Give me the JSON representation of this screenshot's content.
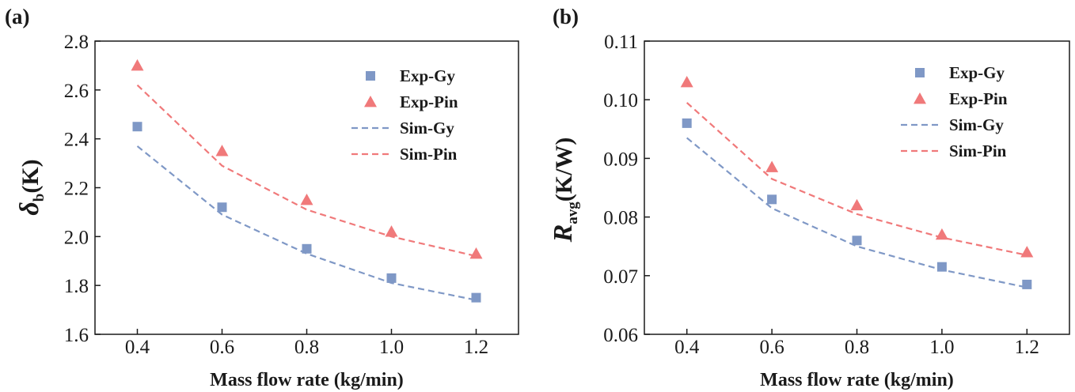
{
  "colors": {
    "gy": "#7f98c6",
    "pin": "#f0797a",
    "axis": "#1a1a1a"
  },
  "chart_data": [
    {
      "type": "scatter",
      "panel_label": "(a)",
      "ylabel_symbol": "δ",
      "ylabel_sub": "b",
      "ylabel_unit": "(K)",
      "xlabel": "Mass flow rate (kg/min)",
      "xlim": [
        0.3,
        1.3
      ],
      "ylim": [
        1.6,
        2.8
      ],
      "xticks": [
        0.4,
        0.6,
        0.8,
        1.0,
        1.2
      ],
      "xtick_labels": [
        "0.4",
        "0.6",
        "0.8",
        "1.0",
        "1.2"
      ],
      "yticks": [
        1.6,
        1.8,
        2.0,
        2.2,
        2.4,
        2.6,
        2.8
      ],
      "ytick_labels": [
        "1.6",
        "1.8",
        "2.0",
        "2.2",
        "2.4",
        "2.6",
        "2.8"
      ],
      "legend_position": "top-right",
      "x": [
        0.4,
        0.6,
        0.8,
        1.0,
        1.2
      ],
      "series": [
        {
          "name": "Exp-Gy",
          "kind": "square",
          "color": "#7f98c6",
          "values": [
            2.45,
            2.12,
            1.95,
            1.83,
            1.75
          ]
        },
        {
          "name": "Exp-Pin",
          "kind": "triangle",
          "color": "#f0797a",
          "values": [
            2.7,
            2.35,
            2.15,
            2.02,
            1.93
          ]
        },
        {
          "name": "Sim-Gy",
          "kind": "dashed",
          "color": "#7f98c6",
          "values": [
            2.37,
            2.09,
            1.93,
            1.81,
            1.74
          ]
        },
        {
          "name": "Sim-Pin",
          "kind": "dashed",
          "color": "#f0797a",
          "values": [
            2.62,
            2.29,
            2.11,
            2.0,
            1.92
          ]
        }
      ]
    },
    {
      "type": "scatter",
      "panel_label": "(b)",
      "ylabel_symbol": "R",
      "ylabel_sub": "avg",
      "ylabel_unit": "(K/W)",
      "xlabel": "Mass flow rate (kg/min)",
      "xlim": [
        0.3,
        1.3
      ],
      "ylim": [
        0.06,
        0.11
      ],
      "xticks": [
        0.4,
        0.6,
        0.8,
        1.0,
        1.2
      ],
      "xtick_labels": [
        "0.4",
        "0.6",
        "0.8",
        "1.0",
        "1.2"
      ],
      "yticks": [
        0.06,
        0.07,
        0.08,
        0.09,
        0.1,
        0.11
      ],
      "ytick_labels": [
        "0.06",
        "0.07",
        "0.08",
        "0.09",
        "0.10",
        "0.11"
      ],
      "legend_position": "top-right",
      "x": [
        0.4,
        0.6,
        0.8,
        1.0,
        1.2
      ],
      "series": [
        {
          "name": "Exp-Gy",
          "kind": "square",
          "color": "#7f98c6",
          "values": [
            0.096,
            0.083,
            0.076,
            0.0715,
            0.0685
          ]
        },
        {
          "name": "Exp-Pin",
          "kind": "triangle",
          "color": "#f0797a",
          "values": [
            0.103,
            0.0885,
            0.082,
            0.077,
            0.074
          ]
        },
        {
          "name": "Sim-Gy",
          "kind": "dashed",
          "color": "#7f98c6",
          "values": [
            0.0935,
            0.0815,
            0.075,
            0.071,
            0.068
          ]
        },
        {
          "name": "Sim-Pin",
          "kind": "dashed",
          "color": "#f0797a",
          "values": [
            0.0995,
            0.0865,
            0.0805,
            0.0765,
            0.0735
          ]
        }
      ]
    }
  ]
}
